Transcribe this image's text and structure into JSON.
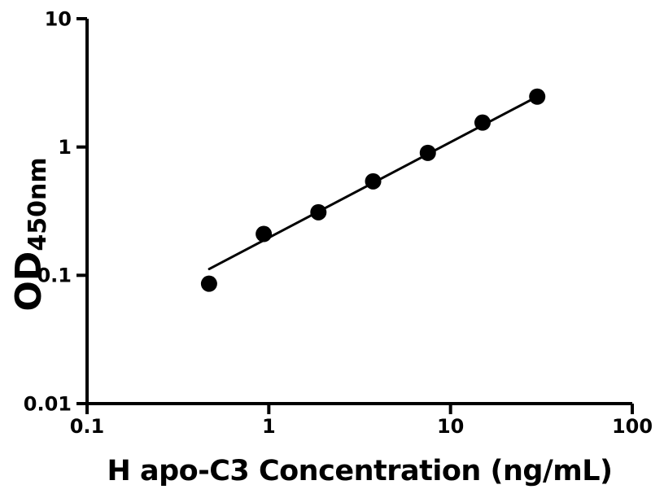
{
  "chart_data": {
    "type": "scatter",
    "title": "",
    "xlabel": "H apo-C3 Concentration (ng/mL)",
    "ylabel_main": "OD",
    "ylabel_sub": "450nm",
    "x_scale": "log",
    "y_scale": "log",
    "xlim": [
      0.1,
      100
    ],
    "ylim": [
      0.01,
      10
    ],
    "x_ticks": [
      0.1,
      1,
      10,
      100
    ],
    "x_tick_labels": [
      "0.1",
      "1",
      "10",
      "100"
    ],
    "y_ticks": [
      0.01,
      0.1,
      1,
      10
    ],
    "y_tick_labels": [
      "0.01",
      "0.1",
      "1",
      "10"
    ],
    "grid": "off",
    "legend": "none",
    "points": [
      {
        "x": 0.469,
        "y": 0.086
      },
      {
        "x": 0.938,
        "y": 0.21
      },
      {
        "x": 1.875,
        "y": 0.31
      },
      {
        "x": 3.75,
        "y": 0.54
      },
      {
        "x": 7.5,
        "y": 0.9
      },
      {
        "x": 15,
        "y": 1.55
      },
      {
        "x": 30,
        "y": 2.47
      }
    ],
    "fit_line": {
      "x1": 0.47,
      "y1": 0.112,
      "x2": 30,
      "y2": 2.47
    },
    "marker_color": "#000000",
    "line_color": "#000000",
    "axis_color": "#000000",
    "background": "#ffffff"
  }
}
